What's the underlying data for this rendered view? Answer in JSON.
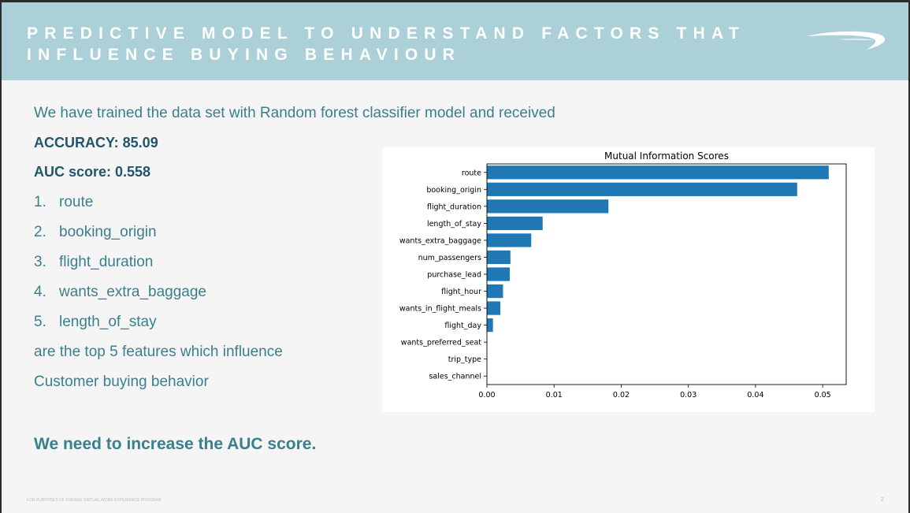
{
  "header": {
    "title_line1": "PREDICTIVE MODEL TO UNDERSTAND FACTORS THAT",
    "title_line2": "INFLUENCE BUYING BEHAVIOUR",
    "logo_icon": "speedmarque-logo-icon"
  },
  "content": {
    "intro": "We have trained the data set with Random forest classifier model and received",
    "accuracy": "ACCURACY: 85.09",
    "auc": "AUC score: 0.558",
    "features": [
      {
        "num": "1.",
        "label": "route"
      },
      {
        "num": "2.",
        "label": "booking_origin"
      },
      {
        "num": "3.",
        "label": "flight_duration"
      },
      {
        "num": "4.",
        "label": "wants_extra_baggage"
      },
      {
        "num": "5.",
        "label": "length_of_stay"
      }
    ],
    "summary_line1": "are the top 5 features which influence",
    "summary_line2": "Customer buying behavior",
    "cta": "We need to increase the AUC score."
  },
  "footer": {
    "text": "FOR PURPOSES OF FORAGE VIRTUAL WORK EXPERIENCE PROGRAM",
    "page": "2"
  },
  "colors": {
    "header_bg": "#abd0d7",
    "accent_text": "#3b7f8c",
    "dark_text": "#22546a",
    "bar": "#1f77b4"
  },
  "chart_data": {
    "type": "bar",
    "orientation": "horizontal",
    "title": "Mutual Information Scores",
    "categories": [
      "route",
      "booking_origin",
      "flight_duration",
      "length_of_stay",
      "wants_extra_baggage",
      "num_passengers",
      "purchase_lead",
      "flight_hour",
      "wants_in_flight_meals",
      "flight_day",
      "wants_preferred_seat",
      "trip_type",
      "sales_channel"
    ],
    "values": [
      0.0509,
      0.0462,
      0.0181,
      0.0083,
      0.0066,
      0.0035,
      0.0034,
      0.0024,
      0.002,
      0.0009,
      0.0,
      0.0,
      0.0
    ],
    "xlim": [
      0.0,
      0.0535
    ],
    "xticks": [
      "0.00",
      "0.01",
      "0.02",
      "0.03",
      "0.04",
      "0.05"
    ],
    "xtick_values": [
      0.0,
      0.01,
      0.02,
      0.03,
      0.04,
      0.05
    ],
    "xlabel": "",
    "ylabel": "",
    "grid": false,
    "legend": "none"
  }
}
